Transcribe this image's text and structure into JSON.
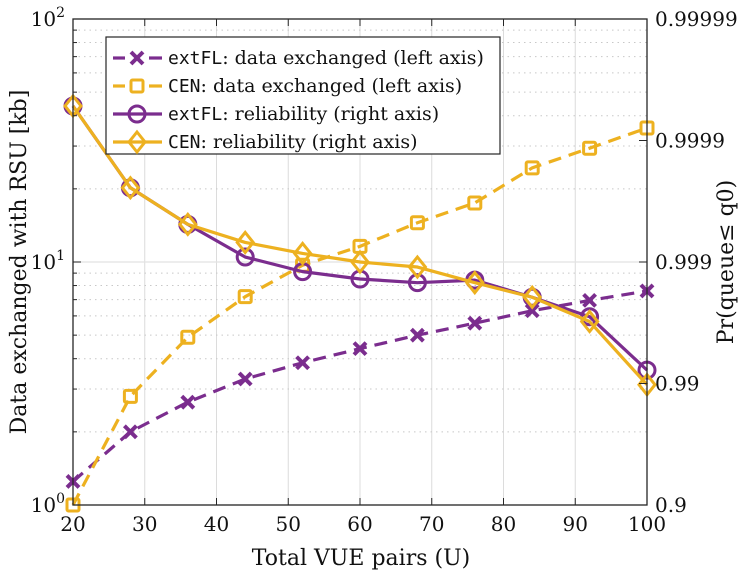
{
  "chart_data": {
    "type": "line",
    "title": "",
    "xlabel": "Total VUE pairs (U)",
    "ylabel_left": "Data exchanged with RSU [kb]",
    "ylabel_right": "Pr(queue≤ q0)",
    "x": [
      20,
      28,
      36,
      44,
      52,
      60,
      68,
      76,
      84,
      92,
      100
    ],
    "xlim": [
      20,
      100
    ],
    "xticks": [
      "20",
      "30",
      "40",
      "50",
      "60",
      "70",
      "80",
      "90",
      "100"
    ],
    "xtick_values": [
      20,
      30,
      40,
      50,
      60,
      70,
      80,
      90,
      100
    ],
    "left_axis": {
      "scale": "log",
      "ylim": [
        1,
        100
      ],
      "ticks": [
        {
          "value": 1,
          "base": "10",
          "exp": "0"
        },
        {
          "value": 10,
          "base": "10",
          "exp": "1"
        },
        {
          "value": 100,
          "base": "10",
          "exp": "2"
        }
      ]
    },
    "right_axis": {
      "scale": "log(1-p)",
      "ylim": [
        0.9,
        0.99999
      ],
      "ticks": [
        {
          "value": 0.9,
          "label": "0.9"
        },
        {
          "value": 0.99,
          "label": "0.99"
        },
        {
          "value": 0.999,
          "label": "0.999"
        },
        {
          "value": 0.9999,
          "label": "0.9999"
        },
        {
          "value": 0.99999,
          "label": "0.99999"
        }
      ]
    },
    "grid": true,
    "legend_position": "top-left",
    "series": [
      {
        "name": "extFL: data exchanged (left axis)",
        "name_mono": "extFL",
        "name_rest": ": data exchanged (left axis)",
        "axis": "left",
        "color": "#7B2D8E",
        "line_style": "dashed",
        "marker": "x",
        "values": [
          1.25,
          2.0,
          2.65,
          3.3,
          3.85,
          4.4,
          5.0,
          5.6,
          6.3,
          6.95,
          7.6
        ]
      },
      {
        "name": "CEN: data exchanged (left axis)",
        "name_mono": "CEN",
        "name_rest": ": data exchanged (left axis)",
        "axis": "left",
        "color": "#EDB120",
        "line_style": "dashed",
        "marker": "square",
        "values": [
          1.0,
          2.8,
          4.9,
          7.2,
          9.7,
          11.6,
          14.5,
          17.5,
          24.4,
          29.4,
          35.6
        ]
      },
      {
        "name": "extFL: reliability (right axis)",
        "name_mono": "extFL",
        "name_rest": ": reliability (right axis)",
        "axis": "right",
        "color": "#7B2D8E",
        "line_style": "solid",
        "marker": "circle",
        "values": [
          0.999948,
          0.999755,
          0.99951,
          0.99909,
          0.9988,
          0.99862,
          0.99852,
          0.99859,
          0.99805,
          0.99718,
          0.99224
        ]
      },
      {
        "name": "CEN: reliability (right axis)",
        "name_mono": "CEN",
        "name_rest": ": reliability (right axis)",
        "axis": "right",
        "color": "#EDB120",
        "line_style": "solid",
        "marker": "diamond",
        "values": [
          0.999948,
          0.999755,
          0.99951,
          0.99931,
          0.99915,
          0.999,
          0.9989,
          0.99852,
          0.99805,
          0.99691,
          0.98977
        ]
      }
    ]
  }
}
